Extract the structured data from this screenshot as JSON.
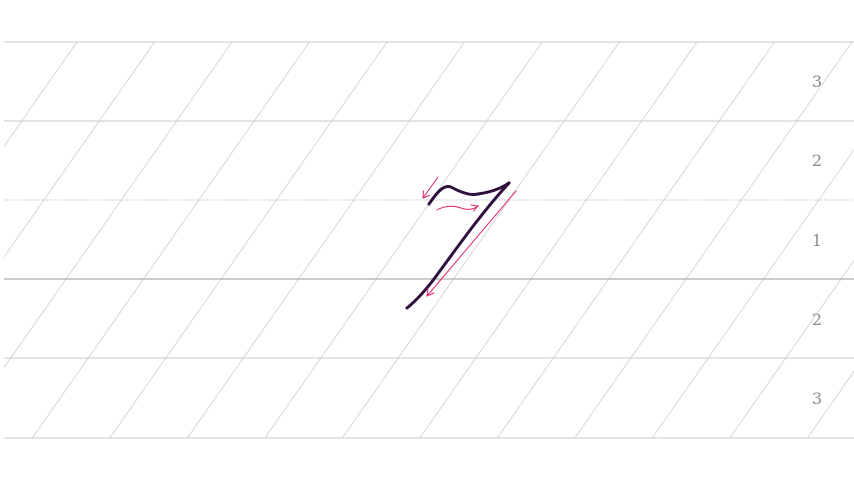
{
  "worksheet": {
    "row_labels": [
      "3",
      "2",
      "1",
      "2",
      "3"
    ],
    "digit": "7"
  },
  "colors": {
    "background": "#ffffff",
    "guide_line": "#c9c9c9",
    "slant_line": "#d2d2d2",
    "baseline": "#9a9a9a",
    "digit_stroke": "#2f0f3e",
    "arrow": "#e0246e",
    "row_label": "#8a8a8a"
  }
}
